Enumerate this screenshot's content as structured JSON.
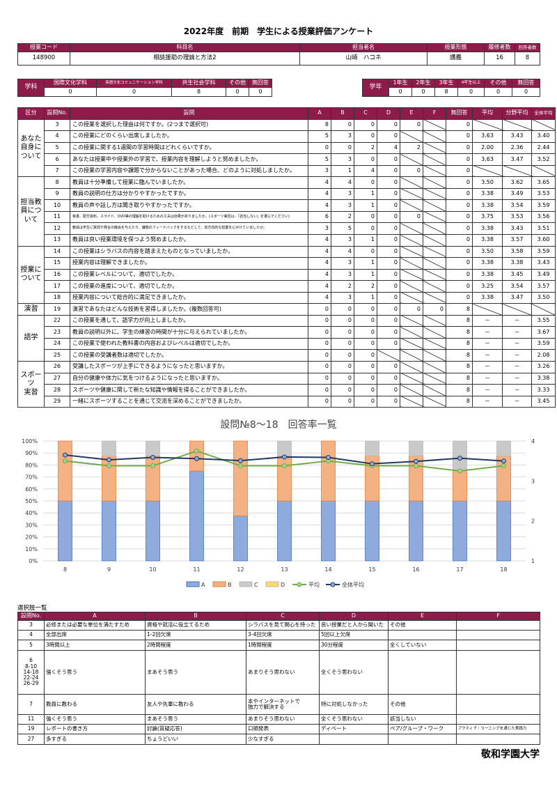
{
  "title": "2022年度　前期　学生による授業評価アンケート",
  "course": {
    "headers": [
      "授業コード",
      "科目名",
      "担当者名",
      "授業形態",
      "履修者数",
      "回答者数"
    ],
    "values": [
      "148900",
      "相談援助の理論と方法2",
      "山崎　ハコネ",
      "講義",
      "16",
      "8"
    ]
  },
  "department": {
    "label": "学科",
    "headers": [
      "国際文化学科",
      "英語文化コミュニケーション学科",
      "共生社会学科",
      "その他",
      "無回答"
    ],
    "values": [
      "0",
      "0",
      "8",
      "0",
      "0"
    ]
  },
  "grade": {
    "label": "学年",
    "headers": [
      "1年生",
      "2年生",
      "3年生",
      "4年生以上",
      "その他",
      "無回答"
    ],
    "values": [
      "0",
      "0",
      "8",
      "0",
      "0",
      "0"
    ]
  },
  "main_table": {
    "headers": [
      "区分",
      "設問No.",
      "設問",
      "A",
      "B",
      "C",
      "D",
      "E",
      "F",
      "無回答",
      "平均",
      "分野平均",
      "全体平均"
    ],
    "groups": [
      {
        "label": "あなた\n自身に\nついて",
        "rows": [
          {
            "no": "3",
            "q": "この授業を選択した理由は何ですか。(2つまで選択可)",
            "v": [
              "8",
              "0",
              "0",
              "0",
              "0",
              null,
              "0",
              null,
              null,
              null
            ]
          },
          {
            "no": "4",
            "q": "この授業にどのくらい出席しましたか。",
            "v": [
              "5",
              "3",
              "0",
              "0",
              null,
              null,
              "0",
              "3.63",
              "3.43",
              "3.40"
            ]
          },
          {
            "no": "5",
            "q": "この授業に関する1週間の学習時間はどれくらいですか。",
            "v": [
              "0",
              "0",
              "2",
              "4",
              "2",
              null,
              "0",
              "2.00",
              "2.36",
              "2.44"
            ]
          },
          {
            "no": "6",
            "q": "あなたは授業中や授業外の学習で、授業内容を理解しようと努めましたか。",
            "v": [
              "5",
              "3",
              "0",
              "0",
              null,
              null,
              "0",
              "3.63",
              "3.47",
              "3.52"
            ]
          },
          {
            "no": "7",
            "q": "この授業の学習内容や課題で分からないことがあった場合、どのように対処しましたか。",
            "v": [
              "3",
              "1",
              "4",
              "0",
              "0",
              null,
              "0",
              null,
              null,
              null
            ]
          }
        ]
      },
      {
        "label": "担当教\n員につ\nいて",
        "rows": [
          {
            "no": "8",
            "q": "教員は十分準備して授業に臨んでいましたか。",
            "v": [
              "4",
              "4",
              "0",
              "0",
              null,
              null,
              "0",
              "3.50",
              "3.62",
              "3.65"
            ]
          },
          {
            "no": "9",
            "q": "教員の説明の仕方は分かりやすかったですか。",
            "v": [
              "4",
              "3",
              "1",
              "0",
              null,
              null,
              "0",
              "3.38",
              "3.49",
              "3.53"
            ]
          },
          {
            "no": "10",
            "q": "教員の声や話し方は聞き取りやすかったですか。",
            "v": [
              "4",
              "3",
              "1",
              "0",
              null,
              null,
              "0",
              "3.38",
              "3.54",
              "3.59"
            ]
          },
          {
            "no": "11",
            "q": "板書、配付資料、スライド、DVD等の理解を助けるための工夫は効果がありましたか。(スポーツ実習は、「該当しない」を選んでください)",
            "small": true,
            "v": [
              "6",
              "2",
              "0",
              "0",
              "0",
              null,
              "0",
              "3.75",
              "3.53",
              "3.56"
            ]
          },
          {
            "no": "12",
            "q": "教員は学生に質問や発言の機会を与えたり、課題のフィードバックをするなどして、双方向的な授業を心がけていましたか。",
            "small": true,
            "v": [
              "3",
              "5",
              "0",
              "0",
              null,
              null,
              "0",
              "3.38",
              "3.43",
              "3.51"
            ]
          },
          {
            "no": "13",
            "q": "教員は良い授業環境を保つよう努めましたか。",
            "v": [
              "4",
              "3",
              "1",
              "0",
              null,
              null,
              "0",
              "3.38",
              "3.57",
              "3.60"
            ]
          }
        ]
      },
      {
        "label": "授業に\nついて",
        "rows": [
          {
            "no": "14",
            "q": "この授業はシラバスの内容を踏まえたものとなっていましたか。",
            "v": [
              "4",
              "4",
              "0",
              "0",
              null,
              null,
              "0",
              "3.50",
              "3.58",
              "3.59"
            ]
          },
          {
            "no": "15",
            "q": "授業内容は理解できましたか。",
            "v": [
              "4",
              "3",
              "1",
              "0",
              null,
              null,
              "0",
              "3.38",
              "3.38",
              "3.43"
            ]
          },
          {
            "no": "16",
            "q": "この授業レベルについて、適切でしたか。",
            "v": [
              "4",
              "3",
              "1",
              "0",
              null,
              null,
              "0",
              "3.38",
              "3.45",
              "3.49"
            ]
          },
          {
            "no": "17",
            "q": "この授業の進度について、適切でしたか。",
            "v": [
              "4",
              "2",
              "2",
              "0",
              null,
              null,
              "0",
              "3.25",
              "3.54",
              "3.57"
            ]
          },
          {
            "no": "18",
            "q": "授業内容について総合的に満足できましたか。",
            "v": [
              "4",
              "3",
              "1",
              "0",
              null,
              null,
              "0",
              "3.38",
              "3.47",
              "3.50"
            ]
          }
        ]
      },
      {
        "label": "演習",
        "rows": [
          {
            "no": "19",
            "q": "演習であなたはどんな技術を習得しましたか。(複数回答可)",
            "v": [
              "0",
              "0",
              "0",
              "0",
              "0",
              "0",
              "8",
              null,
              null,
              null
            ]
          }
        ]
      },
      {
        "label": "語学",
        "rows": [
          {
            "no": "22",
            "q": "この授業を通して、語学力が向上しましたか。",
            "v": [
              "0",
              "0",
              "0",
              "0",
              null,
              null,
              "8",
              "－",
              "－",
              "3.55"
            ]
          },
          {
            "no": "23",
            "q": "教員の説明以外に、学生の練習の時間が十分に与えられていましたか。",
            "v": [
              "0",
              "0",
              "0",
              "0",
              null,
              null,
              "8",
              "－",
              "－",
              "3.67"
            ]
          },
          {
            "no": "24",
            "q": "この授業で使われた教科書の内容およびレベルは適切でしたか。",
            "v": [
              "0",
              "0",
              "0",
              "0",
              null,
              null,
              "8",
              "－",
              "－",
              "3.59"
            ]
          },
          {
            "no": "25",
            "q": "この授業の受講者数は適切でしたか。",
            "v": [
              "0",
              "0",
              "0",
              null,
              null,
              null,
              "8",
              "－",
              "－",
              "2.08"
            ]
          }
        ]
      },
      {
        "label": "スポーツ\n実習",
        "rows": [
          {
            "no": "26",
            "q": "受講したスポーツが上手にできるようになったと思いますか。",
            "v": [
              "0",
              "0",
              "0",
              "0",
              null,
              null,
              "8",
              "－",
              "－",
              "3.26"
            ]
          },
          {
            "no": "27",
            "q": "自分の健康や体力に気をつけるようになったと思いますか。",
            "v": [
              "0",
              "0",
              "0",
              "0",
              null,
              null,
              "8",
              "－",
              "－",
              "3.38"
            ]
          },
          {
            "no": "28",
            "q": "スポーツや健康に関して新たな知識や情報を得ることができましたか。",
            "v": [
              "0",
              "0",
              "0",
              "0",
              null,
              null,
              "8",
              "－",
              "－",
              "3.33"
            ]
          },
          {
            "no": "29",
            "q": "一緒にスポーツすることを通じて交流を深めることができましたか。",
            "v": [
              "0",
              "0",
              "0",
              "0",
              null,
              null,
              "8",
              "－",
              "－",
              "3.45"
            ]
          }
        ]
      }
    ]
  },
  "chart_data": {
    "type": "bar",
    "title": "設問№8～18　回答率一覧",
    "categories": [
      "8",
      "9",
      "10",
      "11",
      "12",
      "13",
      "14",
      "15",
      "16",
      "17",
      "18"
    ],
    "stacked": true,
    "y_left": {
      "range": [
        0,
        100
      ],
      "ticks": [
        "0%",
        "10%",
        "20%",
        "30%",
        "40%",
        "50%",
        "60%",
        "70%",
        "80%",
        "90%",
        "100%"
      ]
    },
    "y_right": {
      "range": [
        1,
        4
      ],
      "ticks": [
        "1",
        "2",
        "3",
        "4"
      ]
    },
    "grid": true,
    "legend_position": "bottom",
    "series": [
      {
        "name": "A",
        "kind": "bar",
        "color": "#8faadc",
        "values": [
          50,
          50,
          50,
          75,
          37.5,
          50,
          50,
          50,
          50,
          50,
          50
        ]
      },
      {
        "name": "B",
        "kind": "bar",
        "color": "#f4b183",
        "values": [
          50,
          37.5,
          37.5,
          25,
          62.5,
          37.5,
          50,
          37.5,
          37.5,
          25,
          37.5
        ]
      },
      {
        "name": "C",
        "kind": "bar",
        "color": "#c9c9c9",
        "values": [
          0,
          12.5,
          12.5,
          0,
          0,
          12.5,
          0,
          12.5,
          12.5,
          25,
          12.5
        ]
      },
      {
        "name": "D",
        "kind": "bar",
        "color": "#ffd966",
        "values": [
          0,
          0,
          0,
          0,
          0,
          0,
          0,
          0,
          0,
          0,
          0
        ]
      },
      {
        "name": "平均",
        "kind": "line",
        "axis": "right",
        "color": "#70ad47",
        "values": [
          3.5,
          3.38,
          3.38,
          3.75,
          3.38,
          3.38,
          3.5,
          3.38,
          3.38,
          3.25,
          3.38
        ]
      },
      {
        "name": "全体平均",
        "kind": "line",
        "axis": "right",
        "color": "#203864",
        "values": [
          3.65,
          3.53,
          3.59,
          3.56,
          3.51,
          3.6,
          3.59,
          3.43,
          3.49,
          3.57,
          3.5
        ]
      }
    ]
  },
  "options": {
    "title": "選択肢一覧",
    "headers": [
      "設問No.",
      "A",
      "B",
      "C",
      "D",
      "E",
      "F"
    ],
    "rows": [
      [
        "3",
        "必修または必要な単位を満たすため",
        "資格や就活に役立てるため",
        "シラバスを見て関心を持った",
        "良い授業だと人から聞いた",
        "その他",
        ""
      ],
      [
        "4",
        "全部出席",
        "1-2回欠席",
        "3-4回欠席",
        "5回以上欠席",
        "",
        ""
      ],
      [
        "5",
        "3時間以上",
        "2時間程度",
        "1時間程度",
        "30分程度",
        "全くしていない",
        ""
      ],
      [
        "6\n8-10\n14-18\n22-24\n26-29",
        "強くそう思う",
        "まあそう思う",
        "あまりそう思わない",
        "全くそう思わない",
        "",
        ""
      ],
      [
        "7",
        "教員に教わる",
        "友人や先輩に教わる",
        "本やインターネットで\n独力で解決する",
        "特に対処しなかった",
        "その他",
        ""
      ],
      [
        "11",
        "強くそう思う",
        "まあそう思う",
        "あまりそう思わない",
        "全くそう思わない",
        "該当しない",
        ""
      ],
      [
        "19",
        "レポートの書き方",
        "討論(質疑応答)",
        "口頭発表",
        "ディベート",
        "ペア/グループ・ワーク",
        "アクティブ・ラーニングを通じた実践力"
      ],
      [
        "27",
        "多すぎる",
        "ちょうどいい",
        "少なすぎる",
        "",
        "",
        ""
      ]
    ]
  },
  "university": "敬和学園大学",
  "colors": {
    "header": "#8e1c4a"
  }
}
